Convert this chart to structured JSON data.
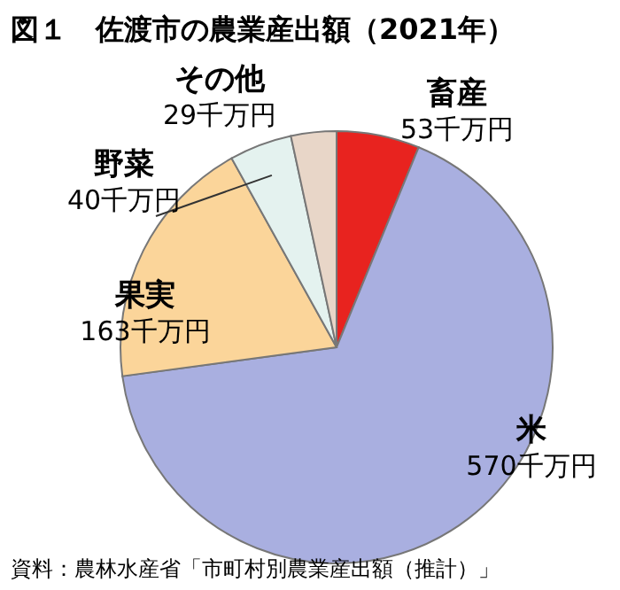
{
  "chart_data": {
    "type": "pie",
    "title": "図１　佐渡市の農業産出額（2021年）",
    "categories": [
      "畜産",
      "米",
      "果実",
      "野菜",
      "その他"
    ],
    "values": [
      53,
      570,
      163,
      40,
      29
    ],
    "value_labels": [
      "53千万円",
      "570千万円",
      "163千万円",
      "40千万円",
      "29千万円"
    ],
    "colors": [
      "#e8231f",
      "#a9afe0",
      "#fbd59a",
      "#e4f2ef",
      "#e8d6c8"
    ],
    "annotations": [
      "資料：農林水産省「市町村別農業産出額（推計）」"
    ]
  }
}
